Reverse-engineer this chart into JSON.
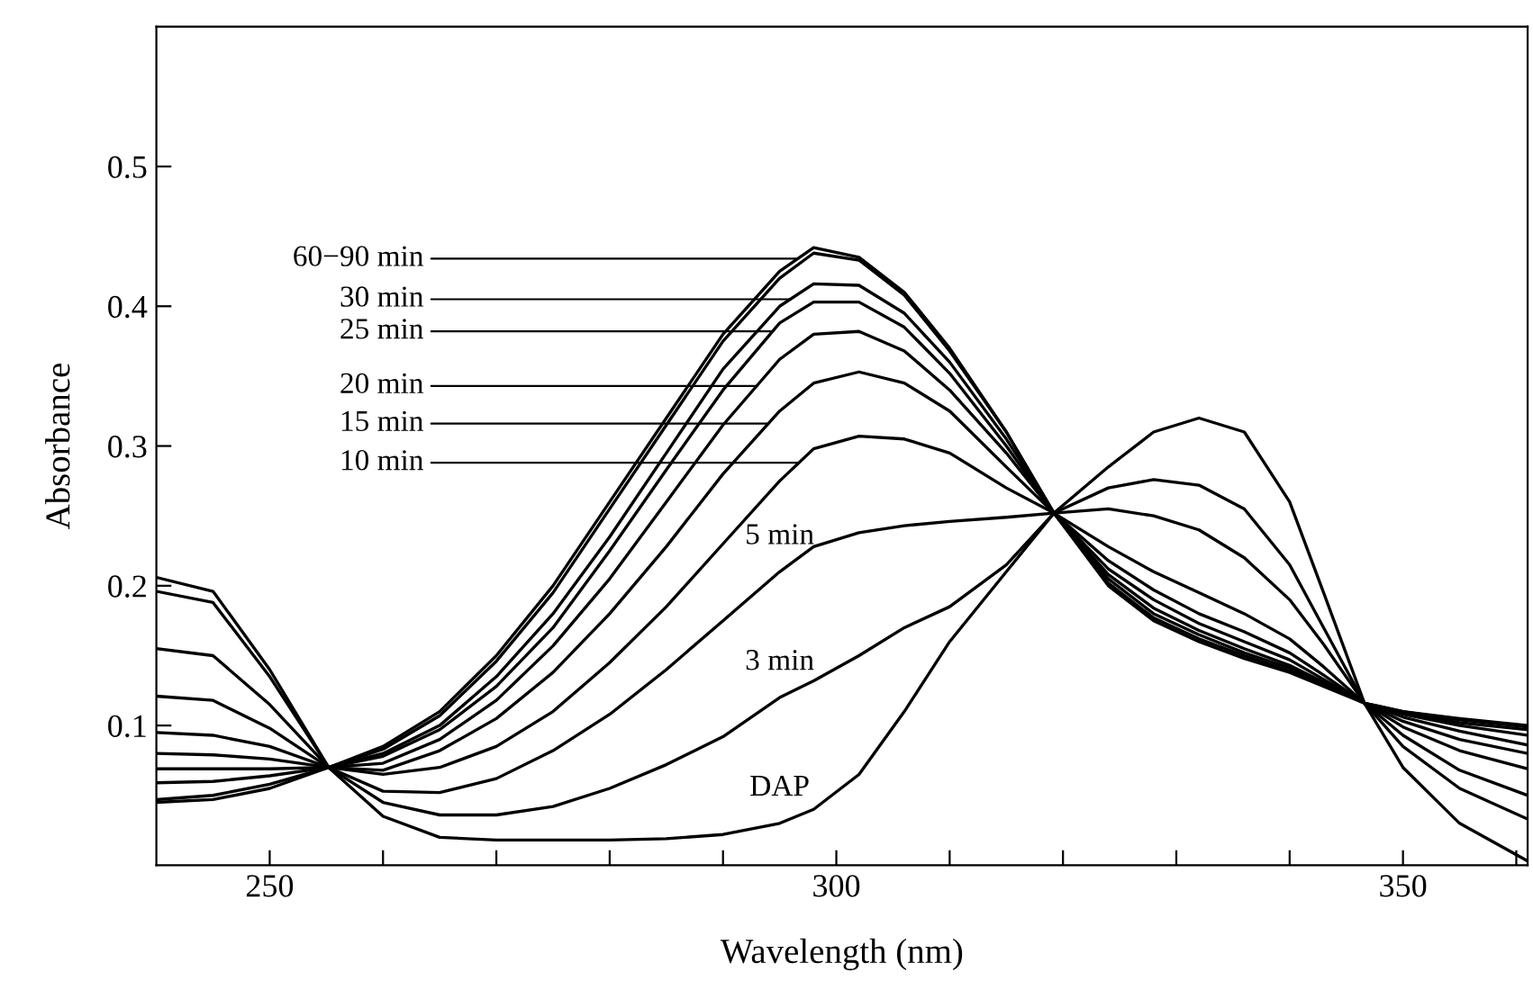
{
  "chart_data": {
    "type": "line",
    "xlabel": "Wavelength (nm)",
    "ylabel": "Absorbance",
    "x": [
      240,
      245,
      250,
      255.2,
      260,
      265,
      270,
      275,
      280,
      285,
      290,
      295,
      298,
      302,
      306,
      310,
      315,
      319.2,
      324,
      328,
      332,
      336,
      340,
      343,
      346.6,
      350,
      355,
      361
    ],
    "xlim": [
      240,
      361
    ],
    "ylim": [
      0,
      0.6
    ],
    "xticks": [
      250,
      {
        "value": 260,
        "label": null
      },
      {
        "value": 270,
        "label": null
      },
      {
        "value": 280,
        "label": null
      },
      {
        "value": 290,
        "label": null
      },
      300,
      {
        "value": 310,
        "label": null
      },
      {
        "value": 320,
        "label": null
      },
      {
        "value": 330,
        "label": null
      },
      {
        "value": 340,
        "label": null
      },
      350,
      {
        "value": 360,
        "label": null
      }
    ],
    "yticks": [
      0.1,
      0.2,
      0.3,
      0.4,
      0.5
    ],
    "marker": "none",
    "line_style": "solid",
    "series": [
      {
        "name": "DAP",
        "color": "#000000",
        "values": [
          0.045,
          0.047,
          0.055,
          0.07,
          0.035,
          0.02,
          0.018,
          0.018,
          0.018,
          0.019,
          0.022,
          0.03,
          0.04,
          0.065,
          0.11,
          0.16,
          0.21,
          0.252,
          0.285,
          0.31,
          0.32,
          0.31,
          0.26,
          0.195,
          0.116,
          0.07,
          0.03,
          0.003
        ]
      },
      {
        "name": "3 min",
        "color": "#000000",
        "values": [
          0.047,
          0.05,
          0.058,
          0.07,
          0.045,
          0.036,
          0.036,
          0.042,
          0.055,
          0.072,
          0.092,
          0.12,
          0.132,
          0.15,
          0.17,
          0.185,
          0.215,
          0.252,
          0.27,
          0.276,
          0.272,
          0.255,
          0.215,
          0.17,
          0.116,
          0.085,
          0.055,
          0.033
        ]
      },
      {
        "name": "5 min",
        "color": "#000000",
        "values": [
          0.059,
          0.06,
          0.064,
          0.07,
          0.053,
          0.052,
          0.062,
          0.082,
          0.108,
          0.14,
          0.175,
          0.21,
          0.228,
          0.238,
          0.243,
          0.246,
          0.249,
          0.252,
          0.255,
          0.25,
          0.24,
          0.22,
          0.19,
          0.158,
          0.116,
          0.093,
          0.068,
          0.05
        ]
      },
      {
        "color": "#000000",
        "values": [
          0.069,
          0.069,
          0.069,
          0.07,
          0.065,
          0.07,
          0.085,
          0.11,
          0.145,
          0.185,
          0.23,
          0.275,
          0.298,
          0.307,
          0.305,
          0.295,
          0.27,
          0.252,
          0.228,
          0.21,
          0.195,
          0.18,
          0.162,
          0.142,
          0.116,
          0.099,
          0.082,
          0.069
        ]
      },
      {
        "color": "#000000",
        "values": [
          0.08,
          0.079,
          0.076,
          0.07,
          0.068,
          0.082,
          0.105,
          0.138,
          0.18,
          0.228,
          0.28,
          0.325,
          0.345,
          0.353,
          0.345,
          0.325,
          0.285,
          0.252,
          0.218,
          0.197,
          0.18,
          0.167,
          0.152,
          0.136,
          0.116,
          0.103,
          0.09,
          0.08
        ]
      },
      {
        "color": "#000000",
        "values": [
          0.095,
          0.093,
          0.085,
          0.07,
          0.073,
          0.09,
          0.118,
          0.157,
          0.205,
          0.26,
          0.315,
          0.362,
          0.38,
          0.382,
          0.368,
          0.34,
          0.295,
          0.252,
          0.212,
          0.19,
          0.173,
          0.16,
          0.147,
          0.133,
          0.116,
          0.106,
          0.096,
          0.086
        ]
      },
      {
        "color": "#000000",
        "values": [
          0.121,
          0.118,
          0.098,
          0.07,
          0.078,
          0.097,
          0.128,
          0.17,
          0.225,
          0.283,
          0.34,
          0.388,
          0.403,
          0.403,
          0.385,
          0.352,
          0.3,
          0.252,
          0.208,
          0.184,
          0.168,
          0.155,
          0.143,
          0.131,
          0.116,
          0.108,
          0.1,
          0.093
        ]
      },
      {
        "color": "#000000",
        "values": [
          0.155,
          0.15,
          0.115,
          0.07,
          0.08,
          0.1,
          0.135,
          0.18,
          0.235,
          0.295,
          0.355,
          0.4,
          0.416,
          0.415,
          0.395,
          0.36,
          0.305,
          0.252,
          0.205,
          0.18,
          0.165,
          0.152,
          0.141,
          0.13,
          0.116,
          0.109,
          0.102,
          0.097
        ]
      },
      {
        "color": "#000000",
        "values": [
          0.196,
          0.188,
          0.135,
          0.07,
          0.083,
          0.107,
          0.146,
          0.195,
          0.255,
          0.315,
          0.375,
          0.42,
          0.438,
          0.433,
          0.408,
          0.368,
          0.31,
          0.252,
          0.202,
          0.177,
          0.162,
          0.15,
          0.139,
          0.129,
          0.116,
          0.11,
          0.104,
          0.099
        ]
      },
      {
        "color": "#000000",
        "values": [
          0.206,
          0.196,
          0.14,
          0.07,
          0.085,
          0.11,
          0.15,
          0.2,
          0.26,
          0.32,
          0.38,
          0.425,
          0.442,
          0.435,
          0.41,
          0.37,
          0.31,
          0.252,
          0.2,
          0.175,
          0.16,
          0.148,
          0.138,
          0.128,
          0.116,
          0.11,
          0.105,
          0.1
        ]
      }
    ],
    "annotations": [
      {
        "text": "60−90 min",
        "x": 296.5,
        "y": 0.434
      },
      {
        "text": "30 min",
        "x": 296,
        "y": 0.405
      },
      {
        "text": "25 min",
        "x": 294.4,
        "y": 0.382
      },
      {
        "text": "20 min",
        "x": 293,
        "y": 0.343
      },
      {
        "text": "15 min",
        "x": 294,
        "y": 0.316
      },
      {
        "text": "10 min",
        "x": 296.7,
        "y": 0.288
      }
    ]
  }
}
